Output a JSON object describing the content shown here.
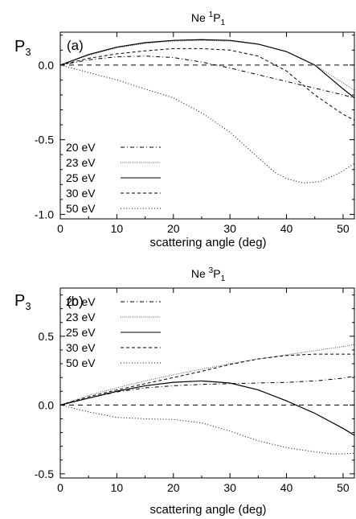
{
  "chart_data": [
    {
      "type": "line",
      "panel_label": "(a)",
      "title": {
        "base": "Ne ",
        "sup": "1",
        "main": "P",
        "sub": "1"
      },
      "ylabel": {
        "main": "P",
        "sub": "3"
      },
      "xlabel": "scattering angle (deg)",
      "xlim": [
        0,
        52
      ],
      "ylim": [
        -1.03,
        0.22
      ],
      "xticks": [
        0,
        10,
        20,
        30,
        40,
        50
      ],
      "xtick_labels": [
        "0",
        "10",
        "20",
        "30",
        "40",
        "50"
      ],
      "yticks": [
        -1.0,
        -0.5,
        0.0
      ],
      "ytick_labels": [
        "-1.0",
        "-0.5",
        "0.0"
      ],
      "zero_line": true,
      "legend_position": "bottom-left",
      "series": [
        {
          "name": "20 eV",
          "dash": "dashdot",
          "x": [
            0,
            5,
            10,
            15,
            20,
            25,
            30,
            35,
            40,
            45,
            50,
            52
          ],
          "y": [
            0,
            0.035,
            0.055,
            0.06,
            0.05,
            0.02,
            -0.02,
            -0.065,
            -0.11,
            -0.155,
            -0.2,
            -0.22
          ]
        },
        {
          "name": "23 eV",
          "dash": "fine-dot",
          "x": [
            0,
            5,
            10,
            15,
            20,
            25,
            30,
            35,
            40,
            45,
            50,
            52
          ],
          "y": [
            0,
            0.065,
            0.115,
            0.145,
            0.16,
            0.165,
            0.16,
            0.14,
            0.09,
            0.0,
            -0.12,
            -0.17
          ]
        },
        {
          "name": "25 eV",
          "dash": "solid",
          "x": [
            0,
            5,
            10,
            15,
            20,
            25,
            30,
            35,
            40,
            45,
            50,
            52
          ],
          "y": [
            0,
            0.07,
            0.12,
            0.15,
            0.165,
            0.17,
            0.165,
            0.14,
            0.09,
            0.0,
            -0.16,
            -0.22
          ]
        },
        {
          "name": "30 eV",
          "dash": "dashed",
          "x": [
            0,
            5,
            10,
            15,
            20,
            25,
            30,
            35,
            40,
            45,
            50,
            52
          ],
          "y": [
            0,
            0.045,
            0.075,
            0.095,
            0.11,
            0.11,
            0.1,
            0.06,
            -0.04,
            -0.2,
            -0.33,
            -0.37
          ]
        },
        {
          "name": "50 eV",
          "dash": "dotted",
          "x": [
            0,
            5,
            10,
            15,
            20,
            25,
            30,
            35,
            38,
            40,
            43,
            46,
            49,
            52
          ],
          "y": [
            0,
            -0.05,
            -0.1,
            -0.16,
            -0.22,
            -0.32,
            -0.45,
            -0.62,
            -0.72,
            -0.76,
            -0.79,
            -0.78,
            -0.73,
            -0.66
          ]
        }
      ]
    },
    {
      "type": "line",
      "panel_label": "(b)",
      "title": {
        "base": "Ne ",
        "sup": "3",
        "main": "P",
        "sub": "1"
      },
      "ylabel": {
        "main": "P",
        "sub": "3"
      },
      "xlabel": "scattering angle (deg)",
      "xlim": [
        0,
        52
      ],
      "ylim": [
        -0.53,
        0.85
      ],
      "xticks": [
        0,
        10,
        20,
        30,
        40,
        50
      ],
      "xtick_labels": [
        "0",
        "10",
        "20",
        "30",
        "40",
        "50"
      ],
      "yticks": [
        -0.5,
        0.0,
        0.5
      ],
      "ytick_labels": [
        "-0.5",
        "0.0",
        "0.5"
      ],
      "zero_line": true,
      "legend_position": "top-left",
      "series": [
        {
          "name": "20 eV",
          "dash": "dashdot",
          "x": [
            0,
            5,
            10,
            15,
            20,
            25,
            30,
            35,
            40,
            45,
            50,
            52
          ],
          "y": [
            0,
            0.05,
            0.095,
            0.125,
            0.14,
            0.15,
            0.155,
            0.16,
            0.165,
            0.175,
            0.195,
            0.21
          ]
        },
        {
          "name": "23 eV",
          "dash": "fine-dot",
          "x": [
            0,
            5,
            10,
            15,
            20,
            25,
            30,
            35,
            40,
            45,
            50,
            52
          ],
          "y": [
            0,
            0.07,
            0.125,
            0.175,
            0.22,
            0.26,
            0.3,
            0.335,
            0.365,
            0.395,
            0.425,
            0.44
          ]
        },
        {
          "name": "25 eV",
          "dash": "solid",
          "x": [
            0,
            5,
            10,
            15,
            20,
            25,
            30,
            35,
            40,
            45,
            50,
            52
          ],
          "y": [
            0,
            0.05,
            0.1,
            0.14,
            0.165,
            0.175,
            0.16,
            0.11,
            0.03,
            -0.06,
            -0.17,
            -0.22
          ]
        },
        {
          "name": "30 eV",
          "dash": "dashed",
          "x": [
            0,
            5,
            10,
            15,
            20,
            25,
            30,
            35,
            40,
            45,
            50,
            52
          ],
          "y": [
            0,
            0.06,
            0.11,
            0.155,
            0.2,
            0.245,
            0.295,
            0.335,
            0.36,
            0.37,
            0.37,
            0.37
          ]
        },
        {
          "name": "50 eV",
          "dash": "dotted",
          "x": [
            0,
            5,
            10,
            15,
            20,
            25,
            30,
            35,
            40,
            45,
            48,
            50,
            52
          ],
          "y": [
            0,
            -0.05,
            -0.09,
            -0.1,
            -0.105,
            -0.13,
            -0.19,
            -0.26,
            -0.31,
            -0.34,
            -0.355,
            -0.355,
            -0.35
          ]
        }
      ]
    }
  ]
}
